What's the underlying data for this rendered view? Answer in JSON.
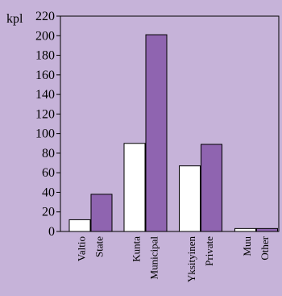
{
  "chart_data": {
    "type": "bar",
    "ylabel": "kpl",
    "ylim": [
      0,
      220
    ],
    "yticks": [
      0,
      20,
      40,
      60,
      80,
      100,
      120,
      140,
      160,
      180,
      200,
      220
    ],
    "categories": [
      {
        "fi": "Valtio",
        "en": "State"
      },
      {
        "fi": "Kunta",
        "en": "Municipal"
      },
      {
        "fi": "Yksityinen",
        "en": "Private"
      },
      {
        "fi": "Muu",
        "en": "Other"
      }
    ],
    "series": [
      {
        "values": [
          12,
          90,
          67,
          3
        ],
        "color": "#ffffff"
      },
      {
        "values": [
          38,
          201,
          89,
          3
        ],
        "color": "#8f64b0"
      }
    ],
    "grid": false,
    "background": "#c6b3d9",
    "plot_background": "#c6b3d9"
  }
}
